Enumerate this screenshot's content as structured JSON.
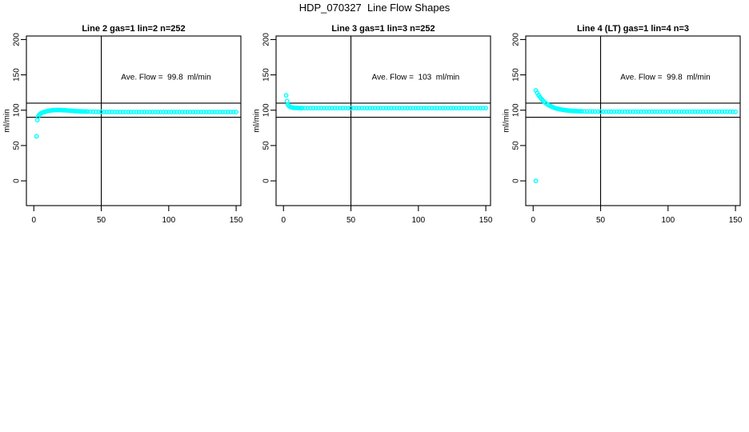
{
  "figure": {
    "title": "HDP_070327  Line Flow Shapes"
  },
  "chart_data": [
    {
      "type": "scatter",
      "title": "Line 2 gas=1 lin=2 n=252",
      "annotation": "Ave. Flow =  99.8  ml/min",
      "xlabel": "",
      "ylabel": "ml/min",
      "xlim": [
        -5.5,
        153.5
      ],
      "ylim": [
        -35,
        205
      ],
      "xticks": [
        0,
        50,
        100,
        150
      ],
      "yticks": [
        0,
        50,
        100,
        150,
        200
      ],
      "hlines": [
        90,
        110
      ],
      "vlines": [
        50
      ],
      "grid": false,
      "marker": "open-circle",
      "marker_color": "#00ffff",
      "points": [
        [
          2,
          63
        ],
        [
          2.6,
          86
        ],
        [
          3.2,
          91
        ],
        [
          4,
          93.5
        ],
        [
          4.8,
          95
        ],
        [
          5.6,
          96
        ],
        [
          6.4,
          96.7
        ],
        [
          7.2,
          97.2
        ],
        [
          8,
          97.7
        ],
        [
          9,
          98.2
        ],
        [
          10,
          98.7
        ],
        [
          11,
          99.1
        ],
        [
          12,
          99.4
        ],
        [
          13,
          99.7
        ],
        [
          14,
          99.9
        ],
        [
          15,
          100.1
        ],
        [
          16,
          100.2
        ],
        [
          17,
          100.3
        ],
        [
          18,
          100.3
        ],
        [
          19,
          100.3
        ],
        [
          20,
          100.2
        ],
        [
          21,
          100.1
        ],
        [
          22,
          100
        ],
        [
          23,
          99.9
        ],
        [
          24,
          99.7
        ],
        [
          25,
          99.6
        ],
        [
          26,
          99.4
        ],
        [
          27,
          99.3
        ],
        [
          28,
          99.1
        ],
        [
          29,
          99
        ],
        [
          30,
          98.8
        ],
        [
          31,
          98.7
        ],
        [
          32,
          98.6
        ],
        [
          33,
          98.5
        ],
        [
          34,
          98.4
        ],
        [
          35,
          98.3
        ],
        [
          36,
          98.2
        ],
        [
          37,
          98.1
        ],
        [
          38,
          98.1
        ],
        [
          39,
          98
        ],
        [
          40,
          98
        ],
        [
          42,
          97.9
        ],
        [
          44,
          97.8
        ],
        [
          46,
          97.8
        ],
        [
          48,
          97.7
        ],
        [
          50,
          97.7
        ],
        [
          52,
          97.6
        ],
        [
          54,
          97.6
        ],
        [
          56,
          97.6
        ],
        [
          58,
          97.6
        ],
        [
          60,
          97.5
        ],
        [
          62,
          97.5
        ],
        [
          64,
          97.5
        ],
        [
          66,
          97.5
        ],
        [
          68,
          97.5
        ],
        [
          70,
          97.5
        ],
        [
          72,
          97.5
        ],
        [
          74,
          97.5
        ],
        [
          76,
          97.5
        ],
        [
          78,
          97.5
        ],
        [
          80,
          97.5
        ],
        [
          82,
          97.5
        ],
        [
          84,
          97.5
        ],
        [
          86,
          97.5
        ],
        [
          88,
          97.5
        ],
        [
          90,
          97.5
        ],
        [
          92,
          97.5
        ],
        [
          94,
          97.5
        ],
        [
          96,
          97.5
        ],
        [
          98,
          97.5
        ],
        [
          100,
          97.5
        ],
        [
          102,
          97.5
        ],
        [
          104,
          97.5
        ],
        [
          106,
          97.5
        ],
        [
          108,
          97.5
        ],
        [
          110,
          97.5
        ],
        [
          112,
          97.5
        ],
        [
          114,
          97.5
        ],
        [
          116,
          97.5
        ],
        [
          118,
          97.5
        ],
        [
          120,
          97.5
        ],
        [
          122,
          97.5
        ],
        [
          124,
          97.5
        ],
        [
          126,
          97.5
        ],
        [
          128,
          97.5
        ],
        [
          130,
          97.5
        ],
        [
          132,
          97.5
        ],
        [
          134,
          97.5
        ],
        [
          136,
          97.5
        ],
        [
          138,
          97.5
        ],
        [
          140,
          97.5
        ],
        [
          142,
          97.5
        ],
        [
          144,
          97.5
        ],
        [
          146,
          97.5
        ],
        [
          148,
          97.5
        ],
        [
          150,
          97.5
        ]
      ]
    },
    {
      "type": "scatter",
      "title": "Line 3 gas=1 lin=3 n=252",
      "annotation": "Ave. Flow =  103  ml/min",
      "xlabel": "",
      "ylabel": "ml/min",
      "xlim": [
        -5.5,
        153.5
      ],
      "ylim": [
        -35,
        205
      ],
      "xticks": [
        0,
        50,
        100,
        150
      ],
      "yticks": [
        0,
        50,
        100,
        150,
        200
      ],
      "hlines": [
        90,
        110
      ],
      "vlines": [
        50
      ],
      "grid": false,
      "marker": "open-circle",
      "marker_color": "#00ffff",
      "points": [
        [
          2,
          121
        ],
        [
          2.6,
          113
        ],
        [
          3.2,
          108
        ],
        [
          4,
          106
        ],
        [
          4.8,
          104.8
        ],
        [
          5.6,
          104.2
        ],
        [
          6.4,
          103.8
        ],
        [
          7.2,
          103.5
        ],
        [
          8,
          103.4
        ],
        [
          9,
          103.2
        ],
        [
          10,
          103.1
        ],
        [
          11,
          103.1
        ],
        [
          12,
          103
        ],
        [
          13,
          103
        ],
        [
          14,
          103
        ],
        [
          16,
          103
        ],
        [
          18,
          103
        ],
        [
          20,
          103
        ],
        [
          22,
          103
        ],
        [
          24,
          103
        ],
        [
          26,
          103
        ],
        [
          28,
          103
        ],
        [
          30,
          103
        ],
        [
          32,
          103
        ],
        [
          34,
          103
        ],
        [
          36,
          103
        ],
        [
          38,
          103
        ],
        [
          40,
          103
        ],
        [
          42,
          103
        ],
        [
          44,
          103
        ],
        [
          46,
          103
        ],
        [
          48,
          103
        ],
        [
          50,
          103
        ],
        [
          52,
          103
        ],
        [
          54,
          103
        ],
        [
          56,
          103
        ],
        [
          58,
          103
        ],
        [
          60,
          103
        ],
        [
          62,
          103
        ],
        [
          64,
          103
        ],
        [
          66,
          103
        ],
        [
          68,
          103
        ],
        [
          70,
          103
        ],
        [
          72,
          103
        ],
        [
          74,
          103
        ],
        [
          76,
          103
        ],
        [
          78,
          103
        ],
        [
          80,
          103
        ],
        [
          82,
          103
        ],
        [
          84,
          103
        ],
        [
          86,
          103
        ],
        [
          88,
          103
        ],
        [
          90,
          103
        ],
        [
          92,
          103
        ],
        [
          94,
          103
        ],
        [
          96,
          103
        ],
        [
          98,
          103
        ],
        [
          100,
          103
        ],
        [
          102,
          103
        ],
        [
          104,
          103
        ],
        [
          106,
          103
        ],
        [
          108,
          103
        ],
        [
          110,
          103
        ],
        [
          112,
          103
        ],
        [
          114,
          103
        ],
        [
          116,
          103
        ],
        [
          118,
          103
        ],
        [
          120,
          103
        ],
        [
          122,
          103
        ],
        [
          124,
          103
        ],
        [
          126,
          103
        ],
        [
          128,
          103
        ],
        [
          130,
          103
        ],
        [
          132,
          103
        ],
        [
          134,
          103
        ],
        [
          136,
          103
        ],
        [
          138,
          103
        ],
        [
          140,
          103
        ],
        [
          142,
          103
        ],
        [
          144,
          103
        ],
        [
          146,
          103
        ],
        [
          148,
          103
        ],
        [
          150,
          103
        ]
      ]
    },
    {
      "type": "scatter",
      "title": "Line 4 (LT) gas=1 lin=4 n=3",
      "annotation": "Ave. Flow =  99.8  ml/min",
      "xlabel": "",
      "ylabel": "ml/min",
      "xlim": [
        -5.5,
        153.5
      ],
      "ylim": [
        -35,
        205
      ],
      "xticks": [
        0,
        50,
        100,
        150
      ],
      "yticks": [
        0,
        50,
        100,
        150,
        200
      ],
      "hlines": [
        90,
        110
      ],
      "vlines": [
        50
      ],
      "grid": false,
      "marker": "open-circle",
      "marker_color": "#00ffff",
      "points": [
        [
          2,
          0
        ],
        [
          2,
          128
        ],
        [
          3,
          124.5
        ],
        [
          4,
          121.4
        ],
        [
          5,
          118.7
        ],
        [
          6,
          116.2
        ],
        [
          7,
          114.1
        ],
        [
          8,
          112.2
        ],
        [
          9,
          110.5
        ],
        [
          10,
          109
        ],
        [
          11,
          107.7
        ],
        [
          12,
          106.6
        ],
        [
          13,
          105.6
        ],
        [
          14,
          104.7
        ],
        [
          15,
          103.9
        ],
        [
          16,
          103.2
        ],
        [
          17,
          102.6
        ],
        [
          18,
          102.1
        ],
        [
          19,
          101.6
        ],
        [
          20,
          101.2
        ],
        [
          21,
          100.8
        ],
        [
          22,
          100.5
        ],
        [
          23,
          100.2
        ],
        [
          24,
          99.9
        ],
        [
          25,
          99.7
        ],
        [
          26,
          99.5
        ],
        [
          27,
          99.3
        ],
        [
          28,
          99.2
        ],
        [
          29,
          99
        ],
        [
          30,
          98.9
        ],
        [
          31,
          98.8
        ],
        [
          32,
          98.7
        ],
        [
          33,
          98.6
        ],
        [
          34,
          98.5
        ],
        [
          35,
          98.5
        ],
        [
          36,
          98.4
        ],
        [
          38,
          98.3
        ],
        [
          40,
          98.2
        ],
        [
          42,
          98.1
        ],
        [
          44,
          98.1
        ],
        [
          46,
          98
        ],
        [
          48,
          98
        ],
        [
          50,
          97.9
        ],
        [
          52,
          97.9
        ],
        [
          54,
          97.9
        ],
        [
          56,
          97.9
        ],
        [
          58,
          97.9
        ],
        [
          60,
          97.9
        ],
        [
          62,
          97.9
        ],
        [
          64,
          97.9
        ],
        [
          66,
          97.9
        ],
        [
          68,
          97.9
        ],
        [
          70,
          97.9
        ],
        [
          72,
          97.9
        ],
        [
          74,
          97.9
        ],
        [
          76,
          97.9
        ],
        [
          78,
          97.9
        ],
        [
          80,
          97.9
        ],
        [
          82,
          97.9
        ],
        [
          84,
          97.9
        ],
        [
          86,
          97.9
        ],
        [
          88,
          97.9
        ],
        [
          90,
          97.9
        ],
        [
          92,
          97.9
        ],
        [
          94,
          97.9
        ],
        [
          96,
          97.9
        ],
        [
          98,
          97.9
        ],
        [
          100,
          97.9
        ],
        [
          102,
          97.9
        ],
        [
          104,
          97.9
        ],
        [
          106,
          97.9
        ],
        [
          108,
          97.9
        ],
        [
          110,
          97.9
        ],
        [
          112,
          97.9
        ],
        [
          114,
          97.9
        ],
        [
          116,
          97.9
        ],
        [
          118,
          97.9
        ],
        [
          120,
          97.9
        ],
        [
          122,
          97.9
        ],
        [
          124,
          97.9
        ],
        [
          126,
          97.9
        ],
        [
          128,
          97.9
        ],
        [
          130,
          97.9
        ],
        [
          132,
          97.9
        ],
        [
          134,
          97.9
        ],
        [
          136,
          97.9
        ],
        [
          138,
          97.9
        ],
        [
          140,
          97.9
        ],
        [
          142,
          97.9
        ],
        [
          144,
          97.9
        ],
        [
          146,
          97.9
        ],
        [
          148,
          97.8
        ],
        [
          150,
          97.7
        ]
      ]
    }
  ]
}
